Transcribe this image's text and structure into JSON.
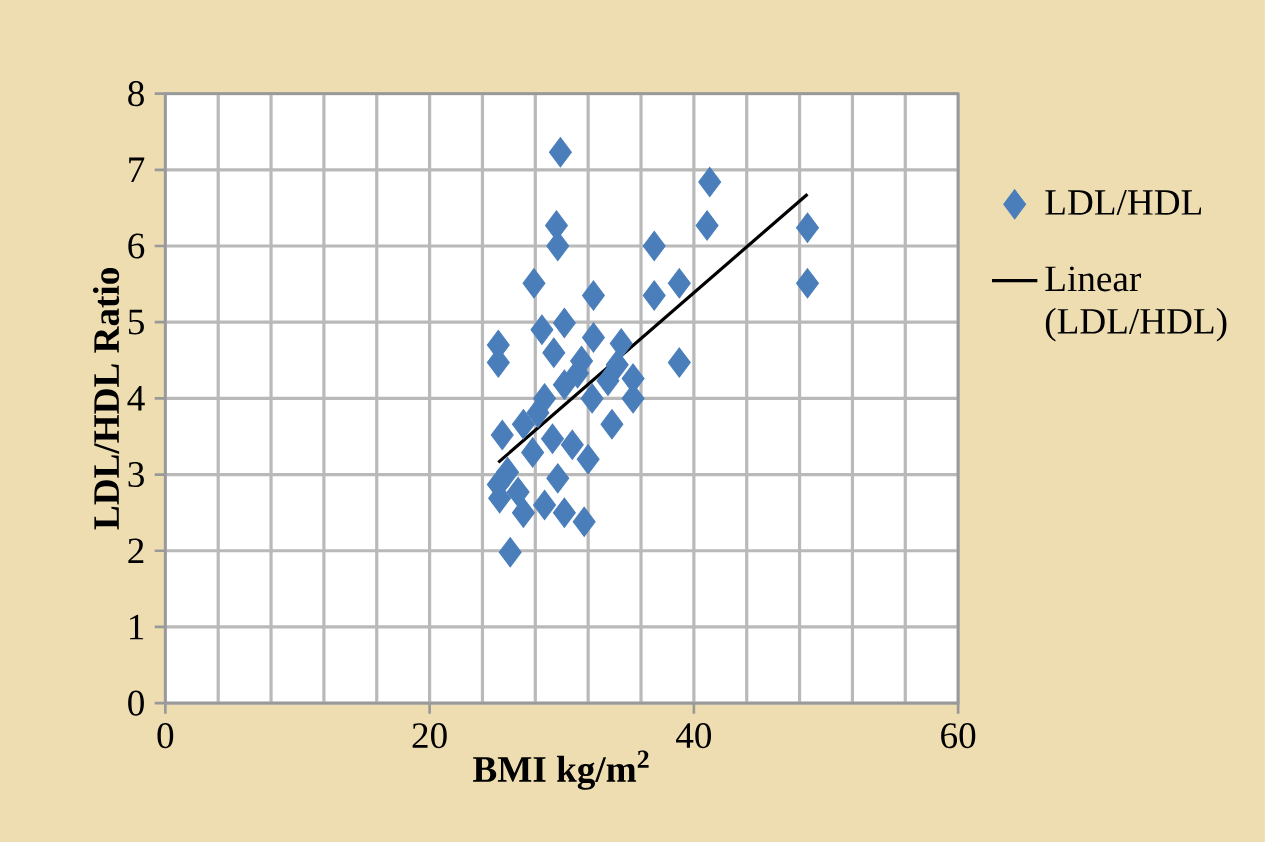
{
  "chart_data": {
    "type": "scatter",
    "xlabel": "BMI kg/m$^{2}$",
    "ylabel": "LDL/HDL Ratio",
    "xlim": [
      0,
      60
    ],
    "ylim": [
      0,
      8
    ],
    "xticks": [
      0,
      20,
      40,
      60
    ],
    "yticks": [
      0,
      1,
      2,
      3,
      4,
      5,
      6,
      7,
      8
    ],
    "grid": true,
    "legend": "right",
    "marker": "diamond",
    "series": [
      {
        "name": "LDL/HDL",
        "color": "#4a7ebb",
        "x": [
          29.9,
          41.2,
          41.0,
          48.6,
          48.6,
          29.6,
          29.7,
          37.0,
          27.9,
          32.4,
          37.0,
          38.9,
          38.9,
          32.4,
          25.2,
          25.2,
          34.5,
          26.1,
          31.7,
          30.2,
          25.3,
          27.1,
          28.7,
          25.2,
          25.9,
          32.0,
          30.8,
          33.8,
          25.5,
          27.1,
          29.3,
          28.7,
          30.2,
          31.2,
          35.4,
          34.2,
          28.2,
          32.3,
          27.8,
          26.7,
          29.7,
          30.2,
          28.5,
          29.4,
          31.5,
          33.5,
          35.4
        ],
        "values": [
          7.23,
          6.84,
          6.27,
          6.24,
          5.51,
          6.27,
          6.0,
          6.0,
          5.51,
          5.35,
          5.35,
          5.51,
          4.47,
          4.8,
          4.7,
          4.47,
          4.72,
          1.98,
          2.38,
          2.5,
          2.69,
          2.5,
          2.6,
          2.87,
          3.03,
          3.2,
          3.39,
          3.66,
          3.52,
          3.66,
          3.47,
          4.0,
          4.18,
          4.33,
          4.26,
          4.44,
          3.81,
          4.0,
          3.29,
          2.77,
          2.95,
          4.99,
          4.9,
          4.6,
          4.49,
          4.23,
          4.0
        ]
      },
      {
        "name": "Linear (LDL/HDL)",
        "type": "line",
        "color": "#000000",
        "marker": "none",
        "x": [
          25.2,
          48.6
        ],
        "values": [
          3.16,
          6.68
        ]
      }
    ]
  }
}
